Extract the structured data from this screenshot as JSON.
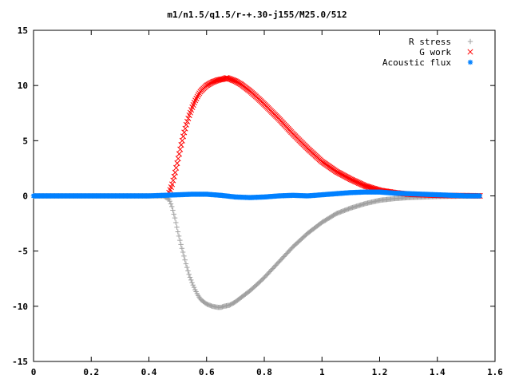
{
  "chart_data": {
    "type": "scatter",
    "title": "m1/n1.5/q1.5/r-+.30-j155/M25.0/512",
    "xlabel": "",
    "ylabel": "",
    "xlim": [
      0,
      1.6
    ],
    "ylim": [
      -15,
      15
    ],
    "x_ticks": [
      "0",
      "0.2",
      "0.4",
      "0.6",
      "0.8",
      "1",
      "1.2",
      "1.4",
      "1.6"
    ],
    "y_ticks": [
      "15",
      "10",
      "5",
      "0",
      "-5",
      "-10",
      "-15"
    ],
    "grid": false,
    "legend_position": "top-right",
    "series": [
      {
        "name": "R stress",
        "marker": "+",
        "color": "#a0a0a0",
        "x": [
          0.0,
          0.1,
          0.2,
          0.3,
          0.4,
          0.45,
          0.47,
          0.48,
          0.49,
          0.5,
          0.51,
          0.52,
          0.53,
          0.54,
          0.55,
          0.56,
          0.57,
          0.58,
          0.6,
          0.62,
          0.64,
          0.65,
          0.66,
          0.68,
          0.7,
          0.72,
          0.75,
          0.78,
          0.8,
          0.85,
          0.9,
          0.95,
          1.0,
          1.05,
          1.1,
          1.15,
          1.2,
          1.25,
          1.3,
          1.35,
          1.4,
          1.45,
          1.5,
          1.55
        ],
        "y": [
          0.0,
          0.0,
          0.0,
          0.0,
          0.0,
          0.0,
          -0.3,
          -1.0,
          -2.0,
          -3.2,
          -4.3,
          -5.3,
          -6.3,
          -7.2,
          -7.9,
          -8.5,
          -9.0,
          -9.4,
          -9.8,
          -10.0,
          -10.1,
          -10.1,
          -10.0,
          -9.9,
          -9.6,
          -9.2,
          -8.6,
          -7.9,
          -7.4,
          -6.0,
          -4.6,
          -3.4,
          -2.4,
          -1.6,
          -1.1,
          -0.7,
          -0.4,
          -0.25,
          -0.15,
          -0.1,
          -0.05,
          -0.03,
          -0.02,
          0.0
        ]
      },
      {
        "name": "G work",
        "marker": "x",
        "color": "#ff0000",
        "x": [
          0.47,
          0.48,
          0.49,
          0.5,
          0.51,
          0.52,
          0.53,
          0.54,
          0.55,
          0.56,
          0.57,
          0.58,
          0.6,
          0.62,
          0.64,
          0.66,
          0.67,
          0.68,
          0.7,
          0.72,
          0.75,
          0.78,
          0.8,
          0.85,
          0.9,
          0.95,
          1.0,
          1.05,
          1.1,
          1.15,
          1.2,
          1.25,
          1.3,
          1.35,
          1.4,
          1.45,
          1.5,
          1.55
        ],
        "y": [
          0.3,
          1.0,
          2.0,
          3.2,
          4.4,
          5.5,
          6.5,
          7.3,
          8.0,
          8.6,
          9.1,
          9.5,
          10.0,
          10.3,
          10.5,
          10.6,
          10.7,
          10.6,
          10.4,
          10.1,
          9.5,
          8.8,
          8.3,
          7.0,
          5.6,
          4.3,
          3.1,
          2.2,
          1.5,
          0.9,
          0.5,
          0.3,
          0.15,
          0.1,
          0.05,
          0.03,
          0.02,
          0.0
        ]
      },
      {
        "name": "Acoustic flux",
        "marker": "*",
        "color": "#0080ff",
        "x": [
          0.0,
          0.1,
          0.2,
          0.3,
          0.4,
          0.45,
          0.5,
          0.55,
          0.6,
          0.65,
          0.7,
          0.75,
          0.8,
          0.85,
          0.9,
          0.95,
          1.0,
          1.05,
          1.1,
          1.15,
          1.2,
          1.25,
          1.3,
          1.35,
          1.4,
          1.45,
          1.5,
          1.55
        ],
        "y": [
          0.0,
          0.0,
          0.0,
          0.0,
          0.0,
          0.05,
          0.1,
          0.15,
          0.15,
          0.05,
          -0.1,
          -0.15,
          -0.1,
          0.0,
          0.05,
          0.0,
          0.1,
          0.2,
          0.3,
          0.35,
          0.35,
          0.25,
          0.2,
          0.15,
          0.1,
          0.05,
          0.0,
          0.0
        ]
      }
    ]
  }
}
